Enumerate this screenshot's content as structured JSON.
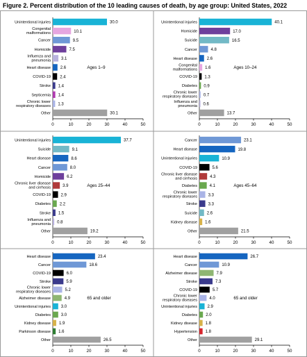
{
  "figure_title": "Figure 2. Percent distribution of the 10 leading causes of death, by age group: United States, 2022",
  "colors": {
    "unintentional_injuries": "#19b3d6",
    "congenital_malformations": "#e6a6e0",
    "cancer": "#6f98d6",
    "homicide": "#6e3f9c",
    "influenza_and_pneumonia": "#b9b2de",
    "heart_disease": "#1565c0",
    "covid_19": "#000000",
    "stroke": "#3a3a8c",
    "septicemia": "#b03ab0",
    "chronic_lower_respiratory": "#aab4e6",
    "other": "#a0a0a0",
    "suicide": "#72b9c6",
    "diabetes": "#6aa84f",
    "chronic_liver_disease": "#b03a3a",
    "kidney_disease": "#d7b24a",
    "alzheimer_disease": "#8fb672",
    "parkinson_disease": "#2e7d32",
    "hypertension": "#d6262e"
  },
  "chart_data": [
    {
      "type": "bar",
      "orientation": "horizontal",
      "annotation": "Ages 1–9",
      "xlim": [
        0,
        50
      ],
      "xticks": [
        "0",
        "10",
        "20",
        "30",
        "40",
        "50"
      ],
      "categories": [
        "Unintentional injuries",
        "Congenital malformations",
        "Cancer",
        "Homicide",
        "Influenza and pneumonia",
        "Heart disease",
        "COVID-19",
        "Stroke",
        "Septicemia",
        "Chronic lower respiratory diseases",
        "Other"
      ],
      "labels": [
        [
          "Unintentional injuries"
        ],
        [
          "Congenital",
          "malformations"
        ],
        [
          "Cancer"
        ],
        [
          "Homicide"
        ],
        [
          "Influenza and",
          "pneumonia"
        ],
        [
          "Heart disease"
        ],
        [
          "COVID-19"
        ],
        [
          "Stroke"
        ],
        [
          "Septicemia"
        ],
        [
          "Chronic lower",
          "respiratory diseases"
        ],
        [
          "Other"
        ]
      ],
      "values": [
        30.0,
        10.1,
        9.5,
        7.5,
        3.1,
        2.6,
        2.4,
        1.4,
        1.4,
        1.3,
        30.1
      ],
      "value_labels": [
        "30.0",
        "10.1",
        "9.5",
        "7.5",
        "3.1",
        "2.6",
        "2.4",
        "1.4",
        "1.4",
        "1.3",
        "30.1"
      ],
      "colors": [
        "#19b3d6",
        "#e6a6e0",
        "#6f98d6",
        "#6e3f9c",
        "#b9b2de",
        "#1565c0",
        "#000000",
        "#3a3a8c",
        "#b03ab0",
        "#aab4e6",
        "#a0a0a0"
      ]
    },
    {
      "type": "bar",
      "orientation": "horizontal",
      "annotation": "Ages 10–24",
      "xlim": [
        0,
        50
      ],
      "xticks": [
        "0",
        "10",
        "20",
        "30",
        "40",
        "50"
      ],
      "categories": [
        "Unintentional injuries",
        "Homicide",
        "Suicide",
        "Cancer",
        "Heart disease",
        "Congenital malformations",
        "COVID-19",
        "Diabetes",
        "Chronic lower respiratory diseases",
        "Influenza and pneumonia",
        "Other"
      ],
      "labels": [
        [
          "Unintentional injuries"
        ],
        [
          "Homicide"
        ],
        [
          "Suicide"
        ],
        [
          "Cancer"
        ],
        [
          "Heart disease"
        ],
        [
          "Congenital",
          "malformations"
        ],
        [
          "COVID-19"
        ],
        [
          "Diabetes"
        ],
        [
          "Chronic lower",
          "respiratory diseases"
        ],
        [
          "Influenza and",
          "pneumonia"
        ],
        [
          "Other"
        ]
      ],
      "values": [
        40.1,
        17.0,
        16.5,
        4.8,
        2.6,
        1.6,
        1.3,
        0.9,
        0.7,
        0.6,
        13.7
      ],
      "value_labels": [
        "40.1",
        "17.0",
        "16.5",
        "4.8",
        "2.6",
        "1.6",
        "1.3",
        "0.9",
        "0.7",
        "0.6",
        "13.7"
      ],
      "colors": [
        "#19b3d6",
        "#6e3f9c",
        "#72b9c6",
        "#6f98d6",
        "#1565c0",
        "#e6a6e0",
        "#000000",
        "#6aa84f",
        "#aab4e6",
        "#b9b2de",
        "#a0a0a0"
      ]
    },
    {
      "type": "bar",
      "orientation": "horizontal",
      "annotation": "Ages 25–44",
      "xlim": [
        0,
        50
      ],
      "xticks": [
        "0",
        "10",
        "20",
        "30",
        "40",
        "50"
      ],
      "categories": [
        "Unintentional injuries",
        "Suicide",
        "Heart disease",
        "Cancer",
        "Homicide",
        "Chronic liver disease and cirrhosis",
        "COVID-19",
        "Diabetes",
        "Stroke",
        "Influenza and pneumonia",
        "Other"
      ],
      "labels": [
        [
          "Unintentional injuries"
        ],
        [
          "Suicide"
        ],
        [
          "Heart disease"
        ],
        [
          "Cancer"
        ],
        [
          "Homicide"
        ],
        [
          "Chronic liver disease",
          "and cirrhosis"
        ],
        [
          "COVID-19"
        ],
        [
          "Diabetes"
        ],
        [
          "Stroke"
        ],
        [
          "Influenza and",
          "pneumonia"
        ],
        [
          "Other"
        ]
      ],
      "values": [
        37.7,
        9.1,
        8.6,
        8.0,
        6.2,
        3.9,
        2.9,
        2.2,
        1.5,
        0.8,
        19.2
      ],
      "value_labels": [
        "37.7",
        "9.1",
        "8.6",
        "8.0",
        "6.2",
        "3.9",
        "2.9",
        "2.2",
        "1.5",
        "0.8",
        "19.2"
      ],
      "colors": [
        "#19b3d6",
        "#72b9c6",
        "#1565c0",
        "#6f98d6",
        "#6e3f9c",
        "#b03a3a",
        "#000000",
        "#6aa84f",
        "#3a3a8c",
        "#b9b2de",
        "#a0a0a0"
      ]
    },
    {
      "type": "bar",
      "orientation": "horizontal",
      "annotation": "Ages 45–64",
      "xlim": [
        0,
        50
      ],
      "xticks": [
        "0",
        "10",
        "20",
        "30",
        "40",
        "50"
      ],
      "categories": [
        "Cancer",
        "Heart disease",
        "Unintentional injuries",
        "COVID-19",
        "Chronic liver disease and cirrhosis",
        "Diabetes",
        "Chronic lower respiratory diseases",
        "Stroke",
        "Suicide",
        "Kidney disease",
        "Other"
      ],
      "labels": [
        [
          "Cancer"
        ],
        [
          "Heart disease"
        ],
        [
          "Unintentional injuries"
        ],
        [
          "COVID-19"
        ],
        [
          "Chronic liver disease",
          "and cirrhosis"
        ],
        [
          "Diabetes"
        ],
        [
          "Chronic lower",
          "respiratory diseases"
        ],
        [
          "Stroke"
        ],
        [
          "Suicide"
        ],
        [
          "Kidney disease"
        ],
        [
          "Other"
        ]
      ],
      "values": [
        23.1,
        19.8,
        10.9,
        5.6,
        4.3,
        4.1,
        3.3,
        3.3,
        2.6,
        1.6,
        21.5
      ],
      "value_labels": [
        "23.1",
        "19.8",
        "10.9",
        "5.6",
        "4.3",
        "4.1",
        "3.3",
        "3.3",
        "2.6",
        "1.6",
        "21.5"
      ],
      "colors": [
        "#6f98d6",
        "#1565c0",
        "#19b3d6",
        "#000000",
        "#b03a3a",
        "#6aa84f",
        "#aab4e6",
        "#3a3a8c",
        "#72b9c6",
        "#d7b24a",
        "#a0a0a0"
      ]
    },
    {
      "type": "bar",
      "orientation": "horizontal",
      "annotation": "65 and older",
      "xlim": [
        0,
        50
      ],
      "xticks": [
        "0",
        "10",
        "20",
        "30",
        "40",
        "50"
      ],
      "categories": [
        "Heart disease",
        "Cancer",
        "COVID-19",
        "Stroke",
        "Chronic lower respiratory diseases",
        "Alzheimer disease",
        "Unintentional injuries",
        "Diabetes",
        "Kidney disease",
        "Parkinson disease",
        "Other"
      ],
      "labels": [
        [
          "Heart disease"
        ],
        [
          "Cancer"
        ],
        [
          "COVID-19"
        ],
        [
          "Stroke"
        ],
        [
          "Chronic lower",
          "respiratory diseases"
        ],
        [
          "Alzheimer disease"
        ],
        [
          "Unintentional injuries"
        ],
        [
          "Diabetes"
        ],
        [
          "Kidney disease"
        ],
        [
          "Parkinson disease"
        ],
        [
          "Other"
        ]
      ],
      "values": [
        23.4,
        18.6,
        6.0,
        5.9,
        5.2,
        4.9,
        3.0,
        3.0,
        1.9,
        1.6,
        26.5
      ],
      "value_labels": [
        "23.4",
        "18.6",
        "6.0",
        "5.9",
        "5.2",
        "4.9",
        "3.0",
        "3.0",
        "1.9",
        "1.6",
        "26.5"
      ],
      "colors": [
        "#1565c0",
        "#6f98d6",
        "#000000",
        "#3a3a8c",
        "#aab4e6",
        "#8fb672",
        "#19b3d6",
        "#6aa84f",
        "#d7b24a",
        "#2e7d32",
        "#a0a0a0"
      ]
    },
    {
      "type": "bar",
      "orientation": "horizontal",
      "annotation": "65 and older",
      "xlim": [
        0,
        50
      ],
      "xticks": [
        "0",
        "10",
        "20",
        "30",
        "40",
        "50"
      ],
      "categories": [
        "Heart disease",
        "Cancer",
        "Alzheimer disease",
        "Stroke",
        "COVID-19",
        "Chronic lower respiratory diseases",
        "Unintentional injuries",
        "Diabetes",
        "Kidney disease",
        "Hypertension",
        "Other"
      ],
      "labels": [
        [
          "Heart disease"
        ],
        [
          "Cancer"
        ],
        [
          "Alzheimer disease"
        ],
        [
          "Stroke"
        ],
        [
          "COVID-19"
        ],
        [
          "Chronic lower",
          "respiratory diseases"
        ],
        [
          "Unintentional injuries"
        ],
        [
          "Diabetes"
        ],
        [
          "Kidney disease"
        ],
        [
          "Hypertension"
        ],
        [
          "Other"
        ]
      ],
      "values": [
        26.7,
        10.9,
        7.9,
        7.3,
        5.7,
        4.0,
        2.9,
        2.0,
        1.8,
        1.8,
        29.1
      ],
      "value_labels": [
        "26.7",
        "10.9",
        "7.9",
        "7.3",
        "5.7",
        "4.0",
        "2.9",
        "2.0",
        "1.8",
        "1.8",
        "29.1"
      ],
      "colors": [
        "#1565c0",
        "#6f98d6",
        "#8fb672",
        "#3a3a8c",
        "#000000",
        "#aab4e6",
        "#19b3d6",
        "#6aa84f",
        "#d7b24a",
        "#d6262e",
        "#a0a0a0"
      ]
    }
  ]
}
